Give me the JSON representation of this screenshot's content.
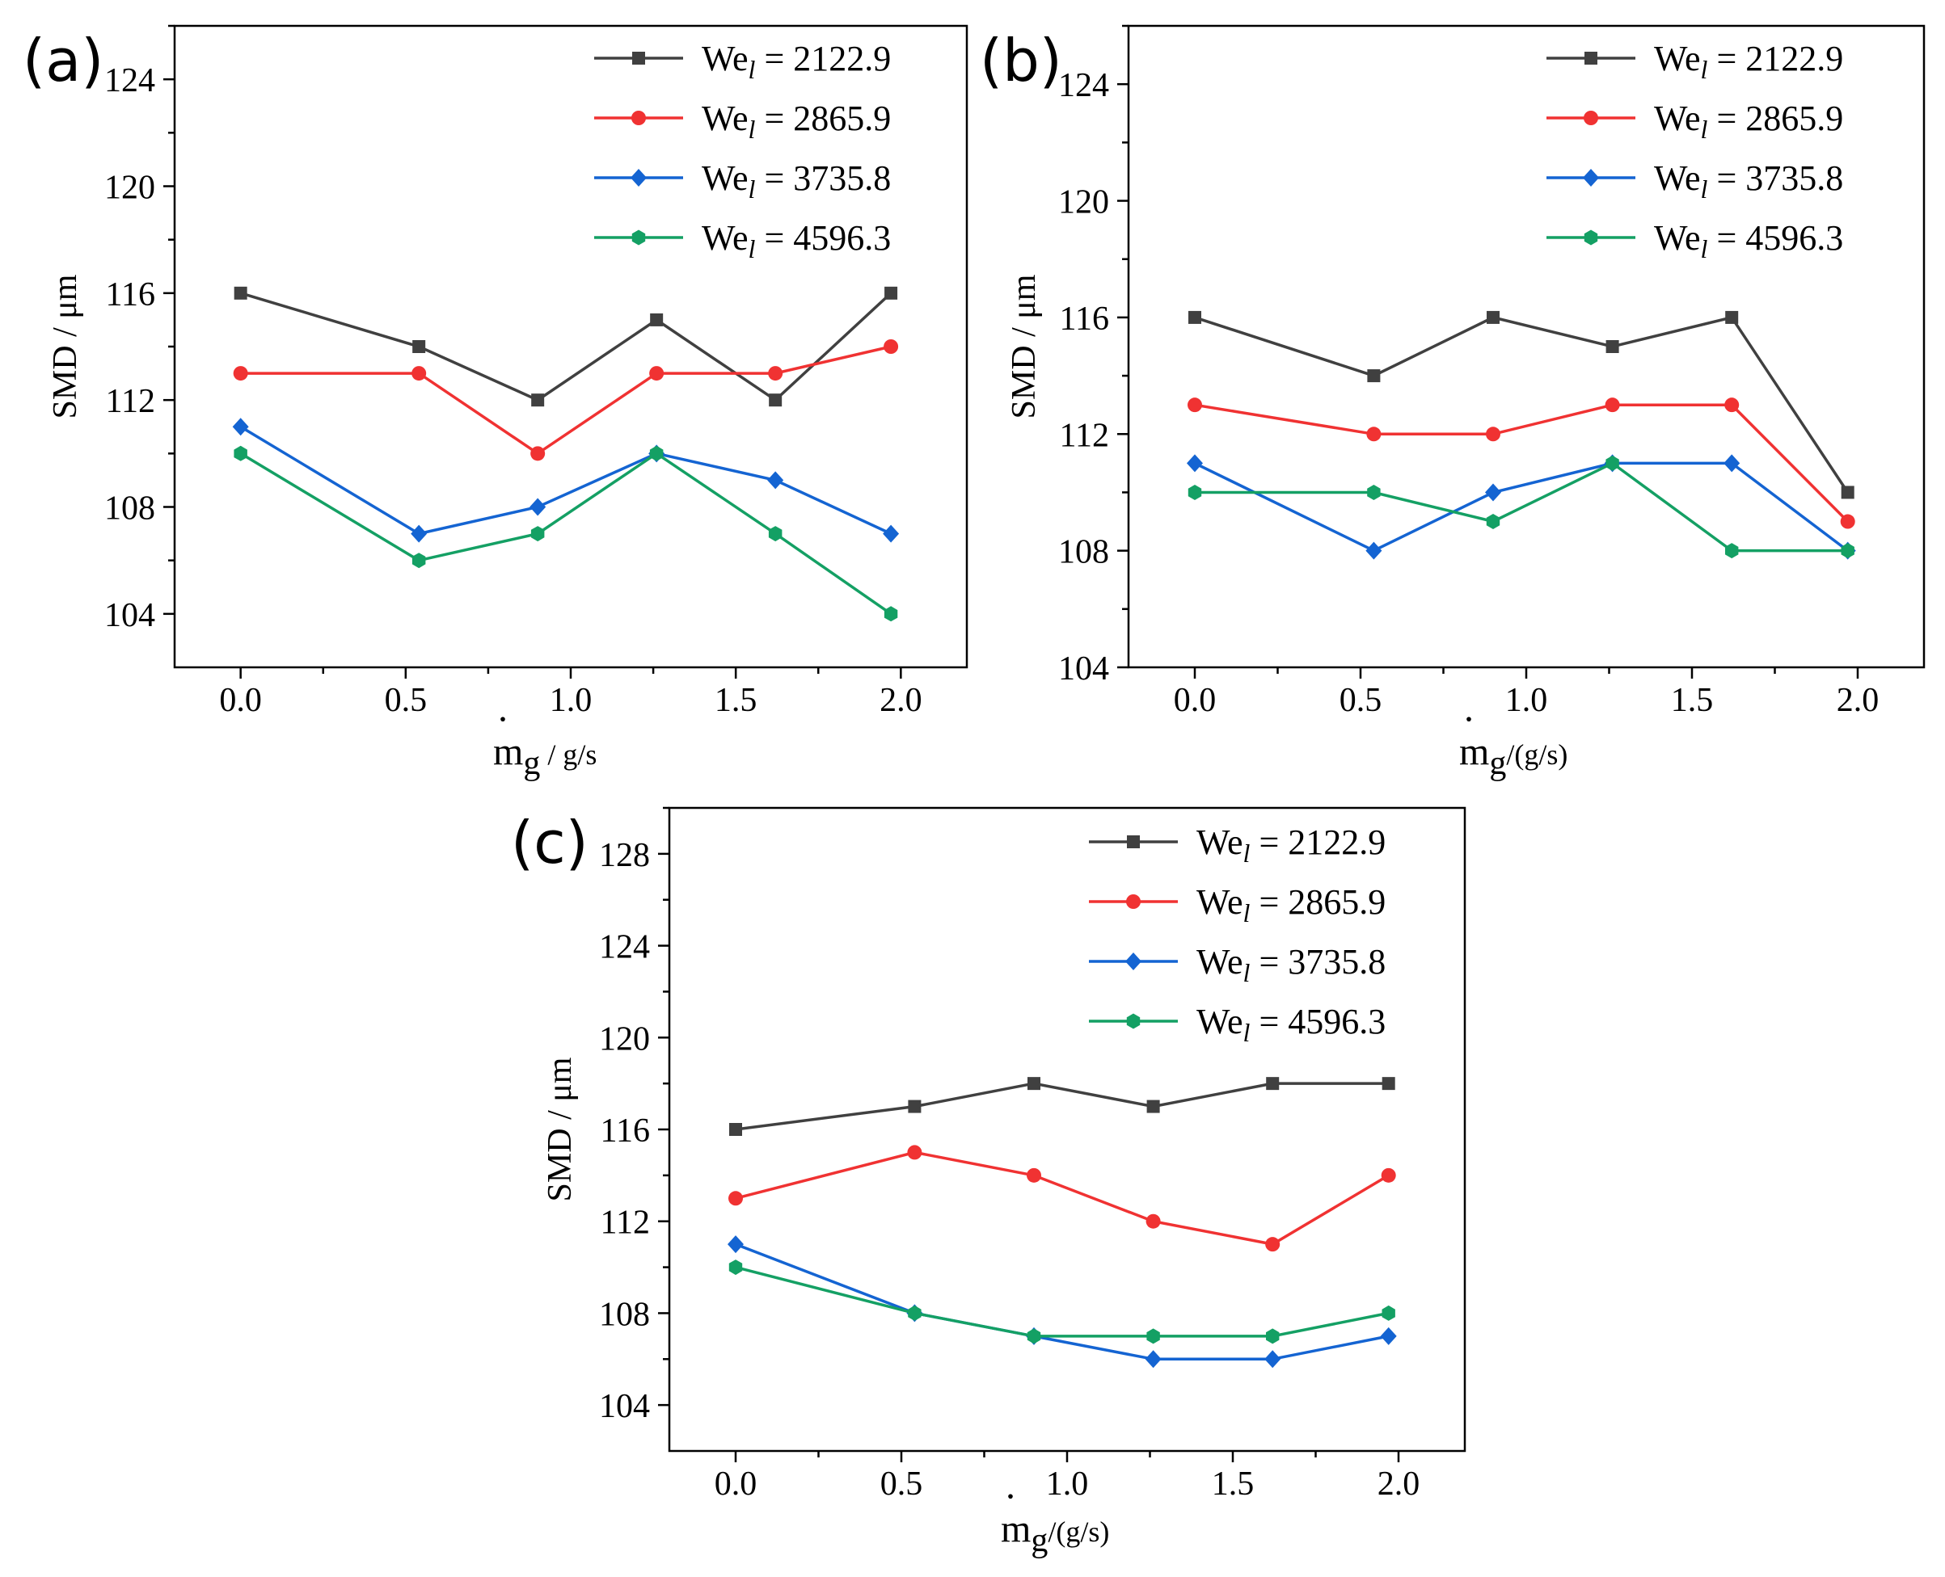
{
  "series_style": [
    {
      "color": "#404040",
      "marker": "square"
    },
    {
      "color": "#f03232",
      "marker": "circle"
    },
    {
      "color": "#1464d2",
      "marker": "diamond"
    },
    {
      "color": "#14a064",
      "marker": "hexagon"
    }
  ],
  "chart_data": [
    {
      "type": "line",
      "panel": "(a)",
      "ylabel": "SMD / μm",
      "xlabel": {
        "symbol": "m",
        "dot": "·",
        "subscript": "g",
        "unit": " / g/s"
      },
      "xlim": [
        -0.2,
        2.2
      ],
      "ylim": [
        102,
        126
      ],
      "xticks": [
        0.0,
        0.5,
        1.0,
        1.5,
        2.0
      ],
      "xtick_labels": [
        "0.0",
        "0.5",
        "1.0",
        "1.5",
        "2.0"
      ],
      "yticks": [
        104,
        108,
        112,
        116,
        120,
        124
      ],
      "ytick_labels": [
        "104",
        "108",
        "112",
        "116",
        "120",
        "124"
      ],
      "x": [
        0.0,
        0.54,
        0.9,
        1.26,
        1.62,
        1.97
      ],
      "legend_position": "top-right",
      "series": [
        {
          "name_main": "We",
          "name_sub": "l",
          "name_value": " = 2122.9",
          "values": [
            116,
            114,
            112,
            115,
            112,
            116
          ]
        },
        {
          "name_main": "We",
          "name_sub": "l",
          "name_value": " = 2865.9",
          "values": [
            113,
            113,
            110,
            113,
            113,
            114
          ]
        },
        {
          "name_main": "We",
          "name_sub": "l",
          "name_value": " = 3735.8",
          "values": [
            111,
            107,
            108,
            110,
            109,
            107
          ]
        },
        {
          "name_main": "We",
          "name_sub": "l",
          "name_value": " = 4596.3",
          "values": [
            110,
            106,
            107,
            110,
            107,
            104
          ]
        }
      ]
    },
    {
      "type": "line",
      "panel": "(b)",
      "ylabel": "SMD / μm",
      "xlabel": {
        "symbol": "m",
        "dot": "·",
        "subscript": "g",
        "unit": "/(g/s)"
      },
      "xlim": [
        -0.2,
        2.2
      ],
      "ylim": [
        104,
        126
      ],
      "xticks": [
        0.0,
        0.5,
        1.0,
        1.5,
        2.0
      ],
      "xtick_labels": [
        "0.0",
        "0.5",
        "1.0",
        "1.5",
        "2.0"
      ],
      "yticks": [
        104,
        108,
        112,
        116,
        120,
        124
      ],
      "ytick_labels": [
        "104",
        "108",
        "112",
        "116",
        "120",
        "124"
      ],
      "x": [
        0.0,
        0.54,
        0.9,
        1.26,
        1.62,
        1.97
      ],
      "legend_position": "top-right",
      "series": [
        {
          "name_main": "We",
          "name_sub": "l",
          "name_value": " = 2122.9",
          "values": [
            116,
            114,
            116,
            115,
            116,
            110
          ]
        },
        {
          "name_main": "We",
          "name_sub": "l",
          "name_value": " = 2865.9",
          "values": [
            113,
            112,
            112,
            113,
            113,
            109
          ]
        },
        {
          "name_main": "We",
          "name_sub": "l",
          "name_value": " = 3735.8",
          "values": [
            111,
            108,
            110,
            111,
            111,
            108
          ]
        },
        {
          "name_main": "We",
          "name_sub": "l",
          "name_value": " = 4596.3",
          "values": [
            110,
            110,
            109,
            111,
            108,
            108
          ]
        }
      ]
    },
    {
      "type": "line",
      "panel": "(c)",
      "ylabel": "SMD / μm",
      "xlabel": {
        "symbol": "m",
        "dot": "·",
        "subscript": "g",
        "unit": "/(g/s)"
      },
      "xlim": [
        -0.2,
        2.2
      ],
      "ylim": [
        102,
        130
      ],
      "xticks": [
        0.0,
        0.5,
        1.0,
        1.5,
        2.0
      ],
      "xtick_labels": [
        "0.0",
        "0.5",
        "1.0",
        "1.5",
        "2.0"
      ],
      "yticks": [
        104,
        108,
        112,
        116,
        120,
        124,
        128
      ],
      "ytick_labels": [
        "104",
        "108",
        "112",
        "116",
        "120",
        "124",
        "128"
      ],
      "x": [
        0.0,
        0.54,
        0.9,
        1.26,
        1.62,
        1.97
      ],
      "legend_position": "top-right",
      "series": [
        {
          "name_main": "We",
          "name_sub": "l",
          "name_value": " = 2122.9",
          "values": [
            116,
            117,
            118,
            117,
            118,
            118
          ]
        },
        {
          "name_main": "We",
          "name_sub": "l",
          "name_value": " = 2865.9",
          "values": [
            113,
            115,
            114,
            112,
            111,
            114
          ]
        },
        {
          "name_main": "We",
          "name_sub": "l",
          "name_value": " = 3735.8",
          "values": [
            111,
            108,
            107,
            106,
            106,
            107
          ]
        },
        {
          "name_main": "We",
          "name_sub": "l",
          "name_value": " = 4596.3",
          "values": [
            110,
            108,
            107,
            107,
            107,
            108
          ]
        }
      ]
    }
  ]
}
